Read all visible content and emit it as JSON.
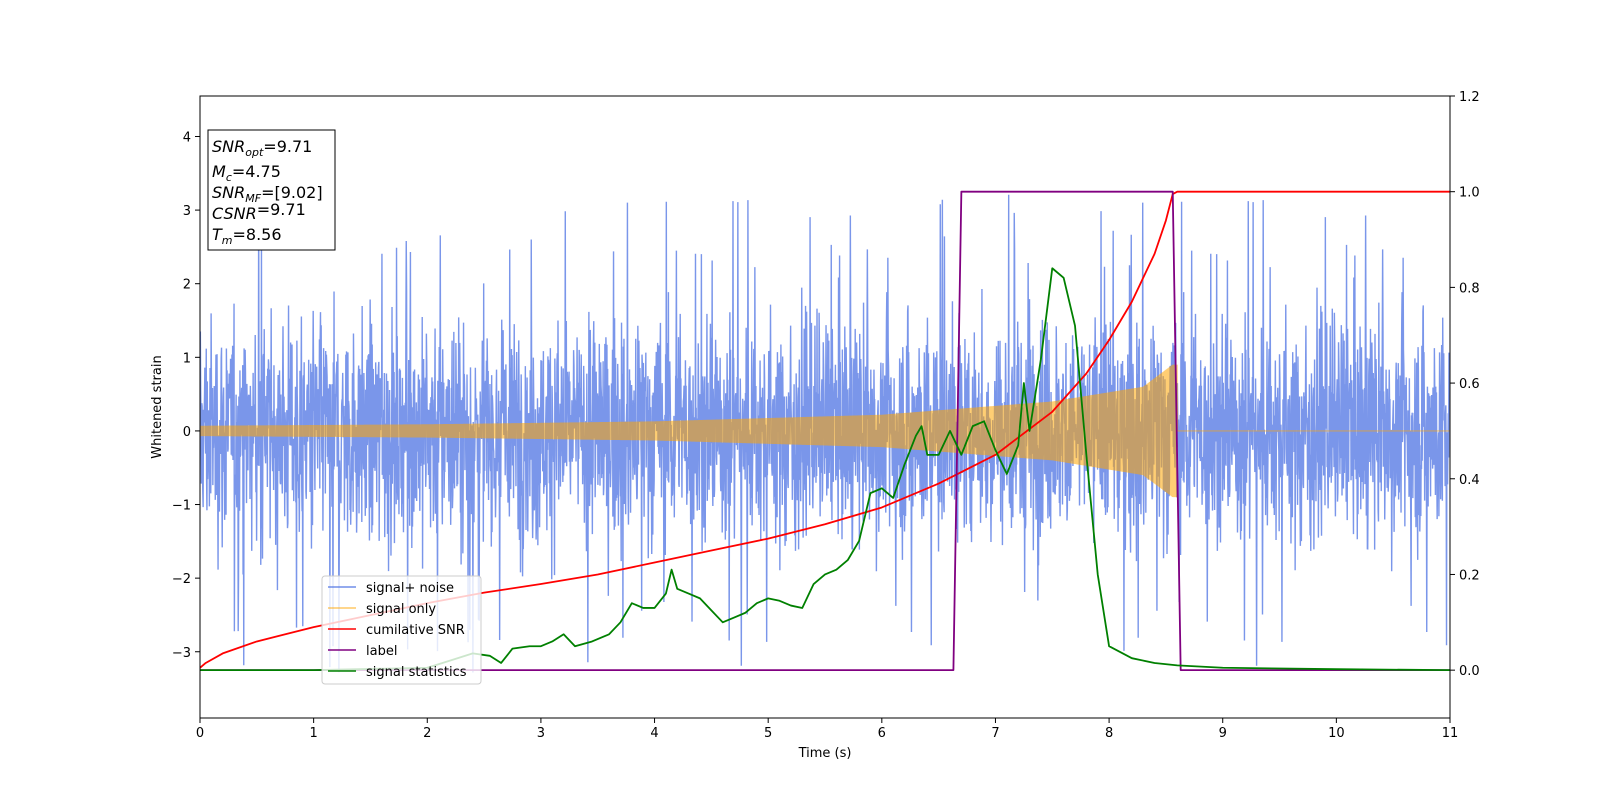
{
  "chart_data": {
    "type": "line",
    "xlabel": "Time (s)",
    "ylabel": "Whitened strain",
    "xlim": [
      0,
      11
    ],
    "ylim_left": [
      -3.9,
      4.55
    ],
    "ylim_right": [
      -0.1,
      1.2
    ],
    "xticks": [
      0,
      1,
      2,
      3,
      4,
      5,
      6,
      7,
      8,
      9,
      10,
      11
    ],
    "yticks_left": [
      -3,
      -2,
      -1,
      0,
      1,
      2,
      3,
      4
    ],
    "yticks_right": [
      0.0,
      0.2,
      0.4,
      0.6,
      0.8,
      1.0,
      1.2
    ],
    "info_box": [
      {
        "base": "SNR",
        "sub": "opt",
        "value": "=9.71"
      },
      {
        "base": "M",
        "sub": "c",
        "value": "=4.75"
      },
      {
        "base": "SNR",
        "sub": "MF",
        "value": "=[9.02]"
      },
      {
        "base": "CSNR",
        "sub": "",
        "value": "=9.71"
      },
      {
        "base": "T",
        "sub": "m",
        "value": "=8.56"
      }
    ],
    "legend": {
      "position": "lower-left",
      "entries": [
        {
          "label": "signal+ noise",
          "color": "#4169e1"
        },
        {
          "label": "signal only",
          "color": "#ffa500"
        },
        {
          "label": "cumilative SNR",
          "color": "#ff0000"
        },
        {
          "label": "label",
          "color": "#800080"
        },
        {
          "label": "signal statistics",
          "color": "#008000"
        }
      ]
    },
    "series": [
      {
        "name": "signal+ noise",
        "axis": "left",
        "color": "#4169e1",
        "opacity": 0.7,
        "kind": "noise",
        "sigma": 0.95,
        "min": -3.55,
        "max": 4.18,
        "t_range": [
          0,
          11
        ]
      },
      {
        "name": "signal only",
        "axis": "left",
        "color": "#ffa500",
        "opacity": 0.55,
        "kind": "chirp",
        "t_start": 0,
        "t_merge": 8.6,
        "t_end": 11,
        "envelope": [
          [
            0,
            0.07
          ],
          [
            2,
            0.09
          ],
          [
            4,
            0.13
          ],
          [
            6,
            0.22
          ],
          [
            7.5,
            0.4
          ],
          [
            8.3,
            0.6
          ],
          [
            8.56,
            0.9
          ]
        ]
      },
      {
        "name": "cumilative SNR",
        "axis": "right",
        "color": "#ff0000",
        "x": [
          0,
          0.05,
          0.2,
          0.5,
          1,
          1.5,
          2,
          2.5,
          3,
          3.5,
          4,
          4.5,
          5,
          5.5,
          6,
          6.5,
          7,
          7.5,
          7.8,
          8,
          8.2,
          8.4,
          8.5,
          8.56,
          8.6,
          9,
          10,
          11
        ],
        "y": [
          0.005,
          0.015,
          0.035,
          0.06,
          0.09,
          0.115,
          0.14,
          0.162,
          0.18,
          0.2,
          0.225,
          0.25,
          0.275,
          0.305,
          0.34,
          0.39,
          0.45,
          0.54,
          0.62,
          0.69,
          0.77,
          0.87,
          0.94,
          0.995,
          1.0,
          1.0,
          1.0,
          1.0
        ]
      },
      {
        "name": "label",
        "axis": "right",
        "color": "#800080",
        "x": [
          0,
          6.63,
          6.7,
          8.56,
          8.63,
          11
        ],
        "y": [
          0,
          0,
          1,
          1,
          0,
          0
        ]
      },
      {
        "name": "signal statistics",
        "axis": "right",
        "color": "#008000",
        "x": [
          0,
          1,
          2,
          2.2,
          2.4,
          2.55,
          2.65,
          2.75,
          2.9,
          3.0,
          3.1,
          3.2,
          3.3,
          3.45,
          3.6,
          3.7,
          3.8,
          3.9,
          4.0,
          4.1,
          4.15,
          4.2,
          4.3,
          4.4,
          4.5,
          4.6,
          4.7,
          4.8,
          4.9,
          5.0,
          5.1,
          5.2,
          5.3,
          5.4,
          5.5,
          5.6,
          5.7,
          5.8,
          5.9,
          6.0,
          6.1,
          6.2,
          6.3,
          6.35,
          6.4,
          6.5,
          6.6,
          6.7,
          6.8,
          6.9,
          7.0,
          7.1,
          7.2,
          7.25,
          7.3,
          7.4,
          7.5,
          7.6,
          7.7,
          7.8,
          7.9,
          8.0,
          8.2,
          8.4,
          8.6,
          9,
          10,
          11
        ],
        "y": [
          0.0,
          0.0,
          0.005,
          0.02,
          0.035,
          0.03,
          0.015,
          0.045,
          0.05,
          0.05,
          0.06,
          0.075,
          0.05,
          0.06,
          0.075,
          0.1,
          0.14,
          0.13,
          0.13,
          0.16,
          0.21,
          0.17,
          0.16,
          0.15,
          0.125,
          0.1,
          0.11,
          0.12,
          0.14,
          0.15,
          0.145,
          0.135,
          0.13,
          0.18,
          0.2,
          0.21,
          0.23,
          0.27,
          0.37,
          0.38,
          0.36,
          0.43,
          0.49,
          0.51,
          0.45,
          0.45,
          0.5,
          0.45,
          0.51,
          0.52,
          0.46,
          0.41,
          0.47,
          0.6,
          0.5,
          0.65,
          0.84,
          0.82,
          0.72,
          0.45,
          0.2,
          0.05,
          0.025,
          0.015,
          0.01,
          0.005,
          0.002,
          0.0
        ]
      }
    ]
  }
}
